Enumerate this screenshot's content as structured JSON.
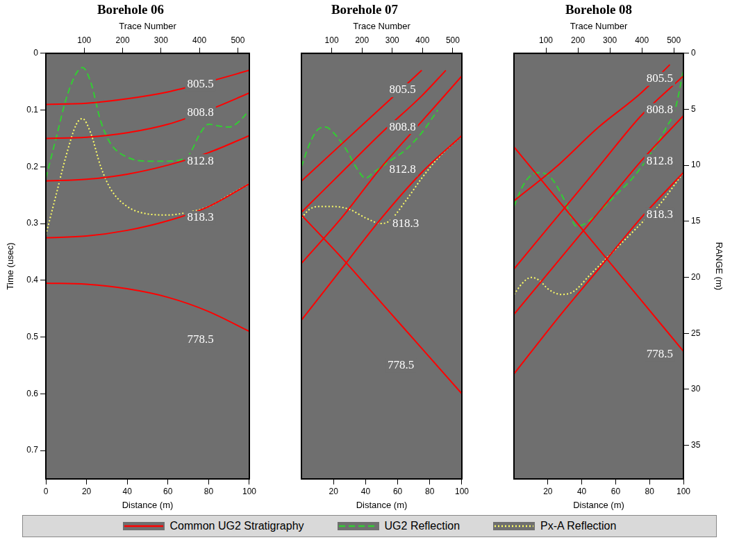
{
  "chart_data": [
    {
      "type": "line",
      "title": "Borehole 06",
      "legend": "bottom",
      "grid": false,
      "x_label": "Distance (m)",
      "xlim": [
        0,
        100
      ],
      "xticks": [
        0,
        20,
        40,
        60,
        80,
        100
      ],
      "x2_label": "Trace Number",
      "x2lim": [
        0,
        530
      ],
      "x2ticks": [
        100,
        200,
        300,
        400,
        500
      ],
      "y_label": "Time (usec)",
      "ylim": [
        0,
        0.75
      ],
      "yticks": [
        0,
        0.1,
        0.2,
        0.3,
        0.4,
        0.5,
        0.6,
        0.7
      ],
      "series": [
        {
          "name": "Common UG2 Stratigraphy",
          "color": "#ff0000",
          "line_style": "solid",
          "curves": [
            {
              "label": "805.5",
              "x": [
                0,
                20,
                40,
                60,
                80,
                100
              ],
              "values": [
                0.09,
                0.088,
                0.08,
                0.068,
                0.05,
                0.03
              ],
              "label_x": 76,
              "label_y": 0.055
            },
            {
              "label": "808.8",
              "x": [
                0,
                20,
                40,
                60,
                80,
                100
              ],
              "values": [
                0.15,
                0.148,
                0.14,
                0.125,
                0.1,
                0.07
              ],
              "label_x": 76,
              "label_y": 0.105
            },
            {
              "label": "812.8",
              "x": [
                0,
                20,
                40,
                60,
                80,
                100
              ],
              "values": [
                0.225,
                0.222,
                0.213,
                0.197,
                0.175,
                0.145
              ],
              "label_x": 76,
              "label_y": 0.19
            },
            {
              "label": "818.3",
              "x": [
                0,
                20,
                40,
                60,
                80,
                100
              ],
              "values": [
                0.325,
                0.322,
                0.312,
                0.295,
                0.27,
                0.23
              ],
              "label_x": 76,
              "label_y": 0.29
            },
            {
              "label": "778.5",
              "x": [
                0,
                20,
                40,
                60,
                80,
                100
              ],
              "values": [
                0.405,
                0.407,
                0.415,
                0.43,
                0.455,
                0.49
              ],
              "label_x": 76,
              "label_y": 0.505
            }
          ]
        },
        {
          "name": "UG2 Reflection",
          "color": "#33cc33",
          "line_style": "dashed",
          "x": [
            0,
            5,
            10,
            15,
            18,
            22,
            27,
            32,
            40,
            50,
            60,
            70,
            76,
            80,
            85,
            90,
            95,
            100
          ],
          "values": [
            0.22,
            0.15,
            0.08,
            0.035,
            0.025,
            0.05,
            0.12,
            0.16,
            0.183,
            0.19,
            0.19,
            0.18,
            0.14,
            0.125,
            0.128,
            0.13,
            0.12,
            0.1
          ]
        },
        {
          "name": "Px-A Reflection",
          "color": "#ffff66",
          "line_style": "dotted",
          "x": [
            0,
            5,
            10,
            15,
            18,
            22,
            27,
            32,
            40,
            50,
            60,
            70,
            80,
            90,
            100
          ],
          "values": [
            0.32,
            0.25,
            0.18,
            0.125,
            0.115,
            0.14,
            0.2,
            0.24,
            0.27,
            0.283,
            0.285,
            0.28,
            0.27,
            0.25,
            0.23
          ]
        }
      ]
    },
    {
      "type": "line",
      "title": "Borehole 07",
      "grid": false,
      "x_label": "Distance (m)",
      "xlim": [
        0,
        100
      ],
      "xticks": [
        20,
        40,
        60,
        80,
        100
      ],
      "x2_label": "Trace Number",
      "x2lim": [
        0,
        530
      ],
      "x2ticks": [
        100,
        200,
        300,
        400,
        500
      ],
      "ylim": [
        0,
        0.75
      ],
      "series": [
        {
          "name": "Common UG2 Stratigraphy",
          "color": "#ff0000",
          "line_style": "solid",
          "curves": [
            {
              "label": "805.5",
              "x": [
                0,
                25,
                50,
                75
              ],
              "values": [
                0.225,
                0.16,
                0.095,
                0.03
              ],
              "label_x": 63,
              "label_y": 0.065
            },
            {
              "label": "808.8",
              "x": [
                0,
                25,
                50,
                75,
                90
              ],
              "values": [
                0.28,
                0.21,
                0.14,
                0.075,
                0.03
              ],
              "label_x": 63,
              "label_y": 0.13
            },
            {
              "label": "812.8",
              "x": [
                0,
                25,
                50,
                75,
                100
              ],
              "values": [
                0.37,
                0.29,
                0.2,
                0.12,
                0.04
              ],
              "label_x": 63,
              "label_y": 0.205
            },
            {
              "label": "818.3",
              "x": [
                0,
                25,
                50,
                75,
                100
              ],
              "values": [
                0.47,
                0.38,
                0.29,
                0.21,
                0.145
              ],
              "label_x": 65,
              "label_y": 0.3
            },
            {
              "label": "778.5",
              "x": [
                0,
                25,
                50,
                75,
                100
              ],
              "values": [
                0.285,
                0.36,
                0.44,
                0.52,
                0.6
              ],
              "label_x": 62,
              "label_y": 0.55
            }
          ]
        },
        {
          "name": "UG2 Reflection",
          "color": "#33cc33",
          "line_style": "dashed",
          "x": [
            0,
            5,
            10,
            15,
            20,
            28,
            35,
            40,
            45,
            55,
            65,
            75,
            85
          ],
          "values": [
            0.2,
            0.16,
            0.135,
            0.13,
            0.14,
            0.17,
            0.205,
            0.22,
            0.21,
            0.19,
            0.17,
            0.14,
            0.1
          ]
        },
        {
          "name": "Px-A Reflection",
          "color": "#ffff66",
          "line_style": "dotted",
          "x": [
            0,
            5,
            10,
            20,
            30,
            40,
            50,
            55,
            65,
            75,
            85,
            100
          ],
          "values": [
            0.29,
            0.275,
            0.27,
            0.27,
            0.275,
            0.29,
            0.3,
            0.295,
            0.26,
            0.22,
            0.185,
            0.145
          ]
        }
      ]
    },
    {
      "type": "line",
      "title": "Borehole 08",
      "grid": false,
      "x_label": "Distance (m)",
      "xlim": [
        0,
        100
      ],
      "xticks": [
        20,
        40,
        60,
        80,
        100
      ],
      "x2_label": "Trace Number",
      "x2lim": [
        0,
        530
      ],
      "x2ticks": [
        100,
        200,
        300,
        400,
        500
      ],
      "ylim": [
        0,
        0.75
      ],
      "y2_label": "RANGE (m)",
      "y2lim": [
        0,
        38
      ],
      "y2ticks": [
        0,
        5,
        10,
        15,
        20,
        25,
        30,
        35
      ],
      "series": [
        {
          "name": "Common UG2 Stratigraphy",
          "color": "#ff0000",
          "line_style": "solid",
          "curves": [
            {
              "label": "805.5",
              "x": [
                0,
                25,
                50,
                75,
                92
              ],
              "values": [
                0.26,
                0.2,
                0.13,
                0.07,
                0.02
              ],
              "label_x": 86,
              "label_y": 0.045
            },
            {
              "label": "808.8",
              "x": [
                0,
                25,
                50,
                75,
                100
              ],
              "values": [
                0.38,
                0.29,
                0.2,
                0.11,
                0.04
              ],
              "label_x": 86,
              "label_y": 0.1
            },
            {
              "label": "812.8",
              "x": [
                0,
                25,
                50,
                75,
                100
              ],
              "values": [
                0.46,
                0.37,
                0.28,
                0.19,
                0.11
              ],
              "label_x": 86,
              "label_y": 0.19
            },
            {
              "label": "818.3",
              "x": [
                0,
                25,
                50,
                75,
                100
              ],
              "values": [
                0.565,
                0.47,
                0.38,
                0.29,
                0.21
              ],
              "label_x": 86,
              "label_y": 0.285
            },
            {
              "label": "778.5",
              "x": [
                0,
                25,
                50,
                75,
                100
              ],
              "values": [
                0.165,
                0.255,
                0.345,
                0.435,
                0.525
              ],
              "label_x": 86,
              "label_y": 0.53
            }
          ]
        },
        {
          "name": "UG2 Reflection",
          "color": "#33cc33",
          "line_style": "dashed",
          "x": [
            0,
            5,
            10,
            15,
            22,
            30,
            37,
            42,
            50,
            60,
            70,
            80,
            90,
            95,
            100
          ],
          "values": [
            0.27,
            0.235,
            0.215,
            0.21,
            0.22,
            0.26,
            0.305,
            0.3,
            0.28,
            0.25,
            0.22,
            0.18,
            0.13,
            0.1,
            0.03
          ]
        },
        {
          "name": "Px-A Reflection",
          "color": "#ffff66",
          "line_style": "dotted",
          "x": [
            0,
            5,
            10,
            15,
            20,
            28,
            35,
            45,
            55,
            65,
            75,
            85,
            100
          ],
          "values": [
            0.425,
            0.405,
            0.395,
            0.4,
            0.415,
            0.425,
            0.42,
            0.39,
            0.36,
            0.33,
            0.3,
            0.27,
            0.21
          ]
        }
      ]
    }
  ]
}
